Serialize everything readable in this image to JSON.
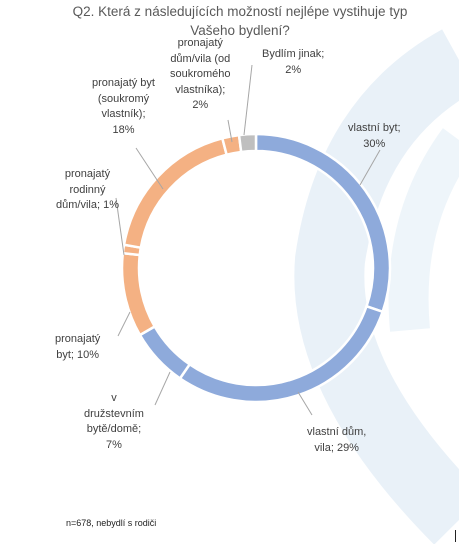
{
  "chart_data": {
    "type": "donut",
    "title": "Q2. Která z následujících možností nejlépe vystihuje typ Vašeho bydlení?",
    "slices": [
      {
        "label_lines": [
          "vlastní byt;",
          "30%"
        ],
        "value": 30,
        "color": "#8eaadb"
      },
      {
        "label_lines": [
          "vlastní dům,",
          "vila; 29%"
        ],
        "value": 29,
        "color": "#8eaadb"
      },
      {
        "label_lines": [
          "v",
          "družstevním",
          "bytě/domě;",
          "7%"
        ],
        "value": 7,
        "color": "#8eaadb"
      },
      {
        "label_lines": [
          "pronajatý",
          "byt; 10%"
        ],
        "value": 10,
        "color": "#f4b183"
      },
      {
        "label_lines": [
          "pronajatý",
          "rodinný",
          "dům/vila; 1%"
        ],
        "value": 1,
        "color": "#f4b183"
      },
      {
        "label_lines": [
          "pronajatý byt",
          "(soukromý",
          "vlastník);",
          "18%"
        ],
        "value": 18,
        "color": "#f4b183"
      },
      {
        "label_lines": [
          "pronajatý",
          "dům/vila (od",
          "soukromého",
          "vlastníka);",
          "2%"
        ],
        "value": 2,
        "color": "#f4b183"
      },
      {
        "label_lines": [
          "Bydlím jinak;",
          "2%"
        ],
        "value": 2,
        "color": "#bfbfbf"
      }
    ]
  },
  "footnote": "n=678, nebydlí s rodiči"
}
